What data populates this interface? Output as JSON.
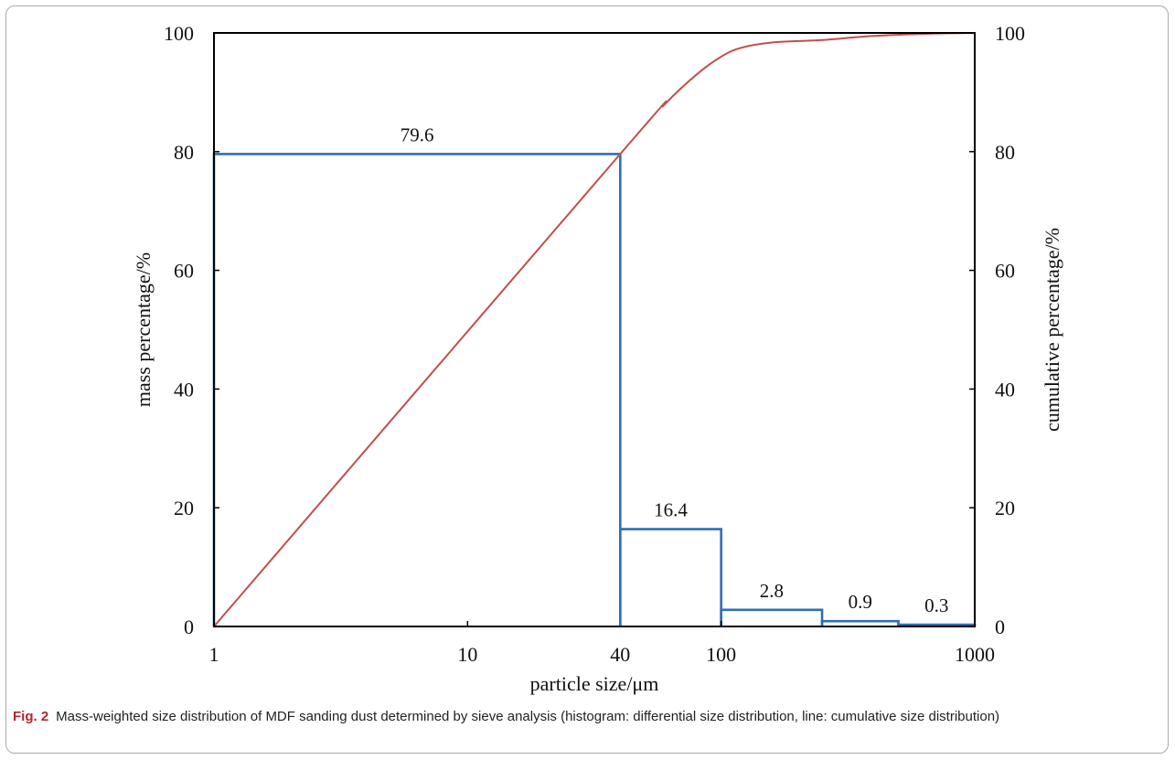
{
  "chart_data": {
    "type": "bar",
    "x_scale": "log",
    "xlim": [
      1,
      1000
    ],
    "ylim_left": [
      0,
      100
    ],
    "ylim_right": [
      0,
      100
    ],
    "xlabel": "particle size/μm",
    "ylabel_left": "mass percentage/%",
    "ylabel_right": "cumulative percentage/%",
    "x_ticks": [
      "1",
      "10",
      "40",
      "100",
      "1000"
    ],
    "x_tick_values": [
      1,
      10,
      40,
      100,
      1000
    ],
    "y_ticks": [
      "0",
      "20",
      "40",
      "60",
      "80",
      "100"
    ],
    "y_tick_values": [
      0,
      20,
      40,
      60,
      80,
      100
    ],
    "grid": false,
    "histogram": {
      "color": "#2e6fb3",
      "bins": [
        {
          "from": 1,
          "to": 40,
          "value": 79.6,
          "label": "79.6"
        },
        {
          "from": 40,
          "to": 100,
          "value": 16.4,
          "label": "16.4"
        },
        {
          "from": 100,
          "to": 250,
          "value": 2.8,
          "label": "2.8"
        },
        {
          "from": 250,
          "to": 500,
          "value": 0.9,
          "label": "0.9"
        },
        {
          "from": 500,
          "to": 1000,
          "value": 0.3,
          "label": "0.3"
        }
      ]
    },
    "cumulative": {
      "color": "#c0504d",
      "points": [
        [
          1,
          0
        ],
        [
          40,
          79.6
        ],
        [
          60,
          88.0
        ],
        [
          80,
          93.0
        ],
        [
          100,
          96.0
        ],
        [
          120,
          97.5
        ],
        [
          160,
          98.4
        ],
        [
          250,
          98.8
        ],
        [
          400,
          99.5
        ],
        [
          700,
          99.9
        ],
        [
          1000,
          100
        ]
      ]
    }
  },
  "caption": {
    "figure_number": "Fig. 2",
    "text": "Mass-weighted size distribution of MDF sanding dust determined by sieve analysis (histogram: differential size distribution, line: cumulative size distribution)"
  }
}
